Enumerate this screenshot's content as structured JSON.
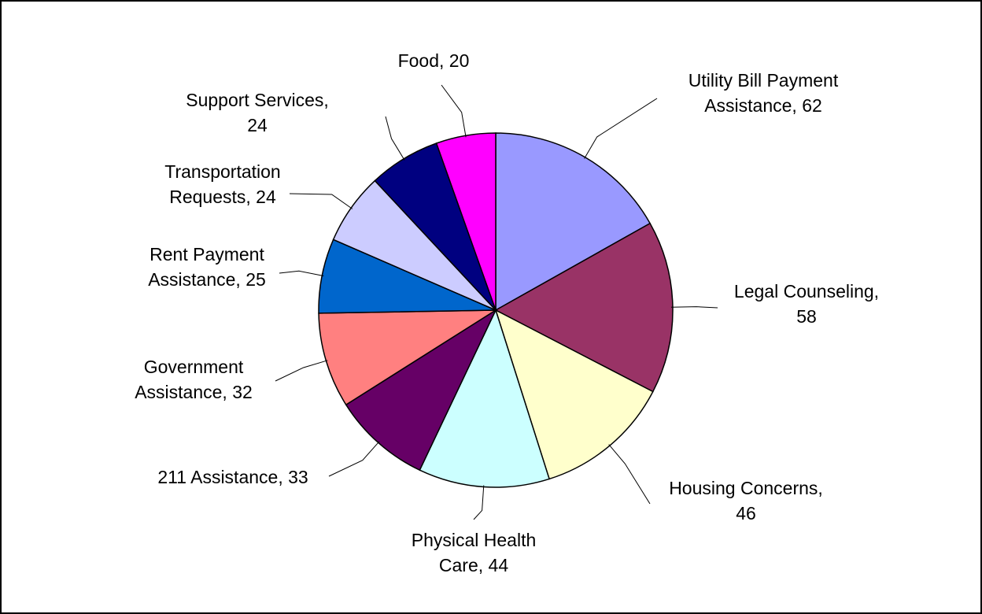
{
  "chart_data": {
    "type": "pie",
    "title": "",
    "slices": [
      {
        "lines": [
          "Utility Bill Payment",
          "Assistance, 62"
        ],
        "category": "Utility Bill Payment Assistance",
        "value": 62,
        "color": "#9999FF"
      },
      {
        "lines": [
          "Legal Counseling,",
          "58"
        ],
        "category": "Legal Counseling",
        "value": 58,
        "color": "#993366"
      },
      {
        "lines": [
          "Housing Concerns,",
          "46"
        ],
        "category": "Housing Concerns",
        "value": 46,
        "color": "#FFFFCC"
      },
      {
        "lines": [
          "Physical Health",
          "Care, 44"
        ],
        "category": "Physical Health Care",
        "value": 44,
        "color": "#CCFFFF"
      },
      {
        "lines": [
          "211 Assistance, 33"
        ],
        "category": "211 Assistance",
        "value": 33,
        "color": "#660066"
      },
      {
        "lines": [
          "Government",
          "Assistance, 32"
        ],
        "category": "Government Assistance",
        "value": 32,
        "color": "#FF8080"
      },
      {
        "lines": [
          "Rent Payment",
          "Assistance, 25"
        ],
        "category": "Rent Payment Assistance",
        "value": 25,
        "color": "#0066CC"
      },
      {
        "lines": [
          "Transportation",
          "Requests, 24"
        ],
        "category": "Transportation Requests",
        "value": 24,
        "color": "#CCCCFF"
      },
      {
        "lines": [
          "Support Services,",
          "24"
        ],
        "category": "Support Services",
        "value": 24,
        "color": "#000080"
      },
      {
        "lines": [
          "Food, 20"
        ],
        "category": "Food",
        "value": 20,
        "color": "#FF00FF"
      }
    ],
    "legend": "none",
    "start_angle": "12 o'clock, clockwise"
  }
}
